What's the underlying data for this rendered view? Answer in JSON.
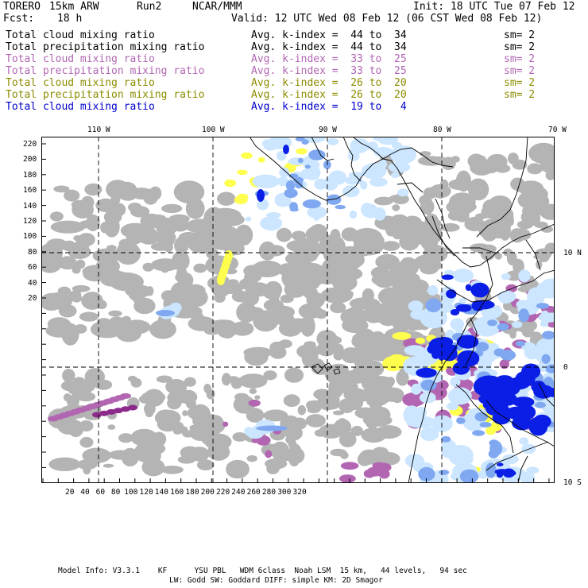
{
  "header": {
    "model": "TORERO",
    "resolution": "15km ARW",
    "run": "Run2",
    "org": "NCAR/MMM",
    "init": "Init: 18 UTC Tue 07 Feb 12",
    "fcst_label": "Fcst:",
    "fcst_value": "18 h",
    "valid": "Valid: 12 UTC Wed 08 Feb 12 (06 CST Wed 08 Feb 12)"
  },
  "legend": [
    {
      "field": "Total cloud mixing ratio",
      "kindex": "Avg. k-index =  44 to  34",
      "sm": "sm= 2",
      "color": "#000000"
    },
    {
      "field": "Total precipitation mixing ratio",
      "kindex": "Avg. k-index =  44 to  34",
      "sm": "sm= 2",
      "color": "#000000"
    },
    {
      "field": "Total cloud mixing ratio",
      "kindex": "Avg. k-index =  33 to  25",
      "sm": "sm= 2",
      "color": "#b266b2"
    },
    {
      "field": "Total precipitation mixing ratio",
      "kindex": "Avg. k-index =  33 to  25",
      "sm": "sm= 2",
      "color": "#b266b2"
    },
    {
      "field": "Total cloud mixing ratio",
      "kindex": "Avg. k-index =  26 to  20",
      "sm": "sm= 2",
      "color": "#8c8c00"
    },
    {
      "field": "Total precipitation mixing ratio",
      "kindex": "Avg. k-index =  26 to  20",
      "sm": "sm= 2",
      "color": "#8c8c00"
    },
    {
      "field": "Total cloud mixing ratio",
      "kindex": "Avg. k-index =  19 to   4",
      "sm": "",
      "color": "#0000cc"
    }
  ],
  "map": {
    "lon_labels": [
      "110 W",
      "100 W",
      "90 W",
      "80 W",
      "70 W"
    ],
    "lat_labels": [
      "10 N",
      "0",
      "10 S"
    ],
    "x_ticks": [
      "20",
      "40",
      "60",
      "80",
      "100",
      "120",
      "140",
      "160",
      "180",
      "200",
      "220",
      "240",
      "260",
      "280",
      "300",
      "320"
    ],
    "y_ticks": [
      "220",
      "200",
      "180",
      "160",
      "140",
      "120",
      "100",
      "80",
      "60",
      "40",
      "20"
    ],
    "colors": {
      "gray": "#b4b4b4",
      "purple": "#b266b2",
      "dark_purple": "#8c2a8c",
      "yellow": "#ffff4d",
      "light_blue": "#cce6ff",
      "mid_blue": "#7fa8f0",
      "blue": "#0a1ee6",
      "coast": "#000000",
      "grid": "#000000"
    }
  },
  "footer": {
    "line1": "Model Info: V3.3.1    KF      YSU PBL   WDM 6class  Noah LSM  15 km,   44 levels,   94 sec",
    "line2": "LW: Godd SW: Goddard DIFF: simple KM: 2D Smagor"
  }
}
